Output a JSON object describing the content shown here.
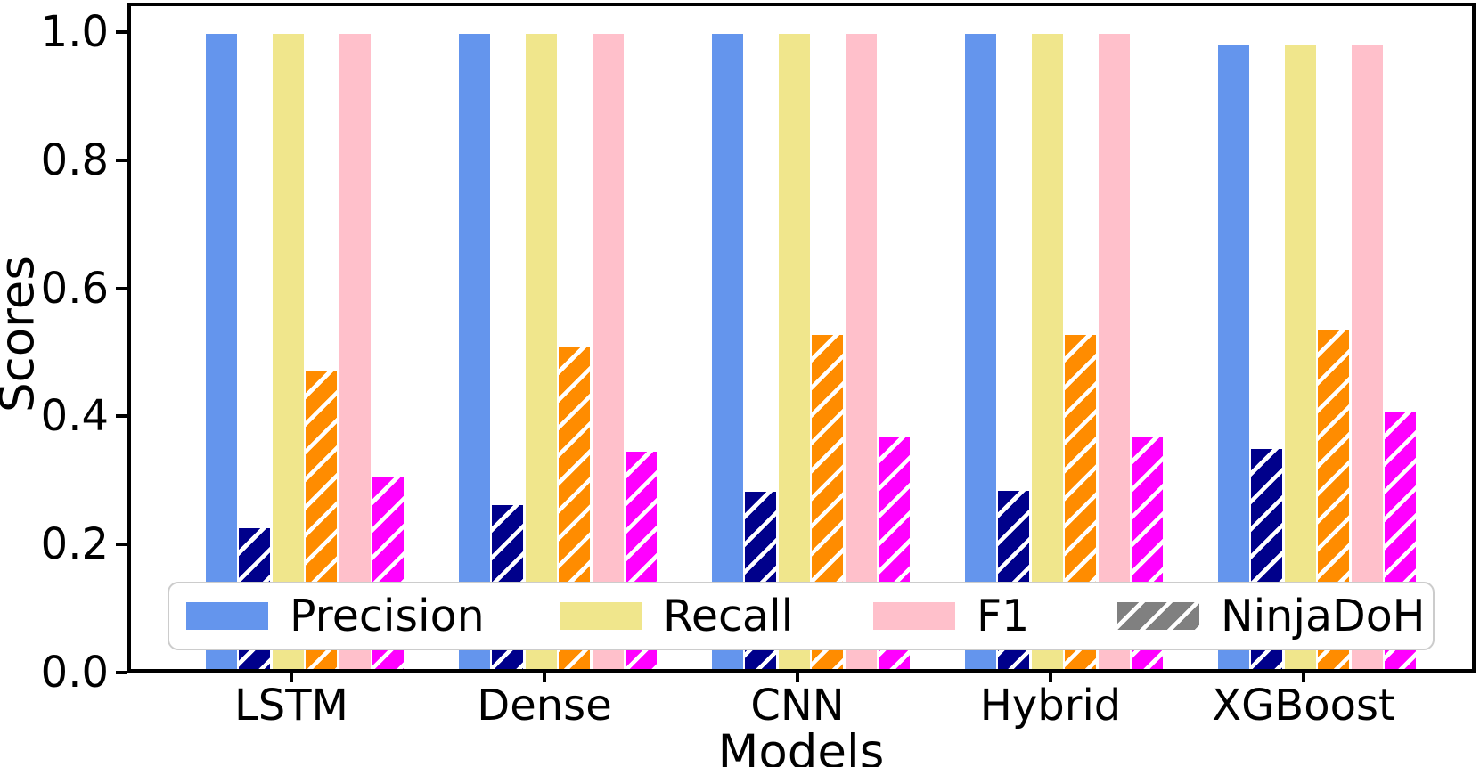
{
  "chart_data": {
    "type": "bar",
    "title": "",
    "xlabel": "Models",
    "ylabel": "Scores",
    "categories": [
      "LSTM",
      "Dense",
      "CNN",
      "Hybrid",
      "XGBoost"
    ],
    "y_ticks": [
      "0.0",
      "0.2",
      "0.4",
      "0.6",
      "0.8",
      "1.0"
    ],
    "ylim": [
      0.0,
      1.045
    ],
    "grid": false,
    "legend_position": "lower center, horizontal row",
    "hatch_pattern": "/",
    "hatch_color": "#ffffff",
    "axis_color": "#000000",
    "background_color": "#ffffff",
    "series": [
      {
        "name": "Precision",
        "dataset": "baseline",
        "color": "#6495ED",
        "hatched": false,
        "values": [
          0.997,
          0.997,
          0.997,
          0.997,
          0.98
        ]
      },
      {
        "name": "Precision (NinjaDoH)",
        "dataset": "NinjaDoH",
        "color": "#00008B",
        "hatched": true,
        "values": [
          0.226,
          0.261,
          0.282,
          0.284,
          0.349
        ]
      },
      {
        "name": "Recall",
        "dataset": "baseline",
        "color": "#F0E68C",
        "hatched": false,
        "values": [
          0.997,
          0.997,
          0.997,
          0.997,
          0.98
        ]
      },
      {
        "name": "Recall (NinjaDoH)",
        "dataset": "NinjaDoH",
        "color": "#FF8C00",
        "hatched": true,
        "values": [
          0.47,
          0.508,
          0.527,
          0.527,
          0.534
        ]
      },
      {
        "name": "F1",
        "dataset": "baseline",
        "color": "#FFC0CB",
        "hatched": false,
        "values": [
          0.997,
          0.997,
          0.997,
          0.997,
          0.98
        ]
      },
      {
        "name": "F1 (NinjaDoH)",
        "dataset": "NinjaDoH",
        "color": "#FF00FF",
        "hatched": true,
        "values": [
          0.304,
          0.345,
          0.368,
          0.367,
          0.408
        ]
      }
    ],
    "legend": [
      {
        "label": "Precision",
        "color": "#6495ED",
        "hatched": false
      },
      {
        "label": "Recall",
        "color": "#F0E68C",
        "hatched": false
      },
      {
        "label": "F1",
        "color": "#FFC0CB",
        "hatched": false
      },
      {
        "label": "NinjaDoH",
        "color": "#808080",
        "hatched": true
      }
    ]
  }
}
